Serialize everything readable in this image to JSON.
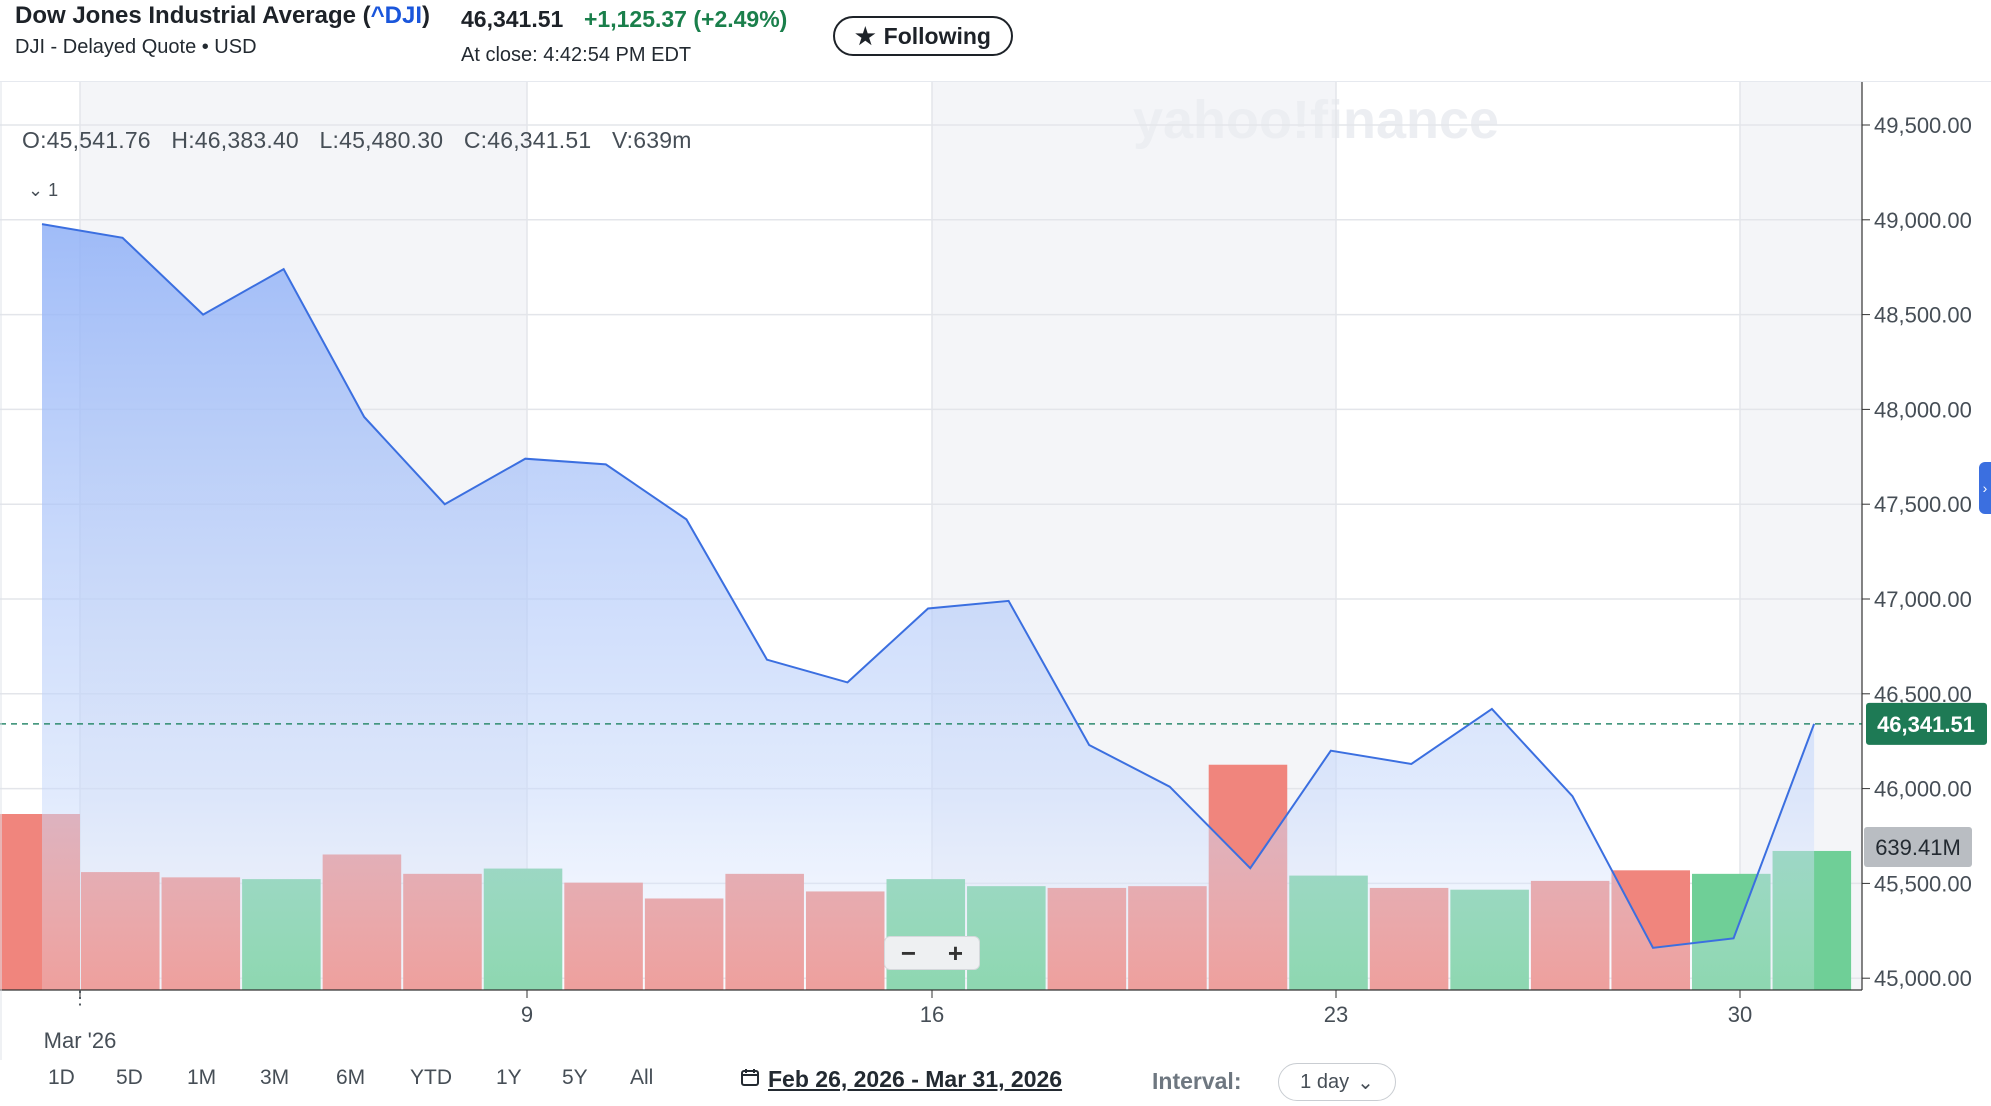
{
  "header": {
    "title_name": "Dow Jones Industrial Average (",
    "title_symbol": "^DJI",
    "title_close": ")",
    "subtitle": "DJI - Delayed Quote • USD",
    "price": "46,341.51",
    "change": "+1,125.37  (+2.49%)",
    "close_time": "At close: 4:42:54 PM EDT",
    "follow_label": "Following"
  },
  "ohlc": {
    "open": "O:45,541.76",
    "high": "H:46,383.40",
    "low": "L:45,480.30",
    "close": "C:46,341.51",
    "volume": "V:639m"
  },
  "collapse_label": "1",
  "watermark": "yahoo!finance",
  "chart_data": {
    "type": "area",
    "x_tick_labels": [
      "Mar '26",
      "9",
      "16",
      "23",
      "30"
    ],
    "y_tick_labels": [
      "49,500.00",
      "49,000.00",
      "48,500.00",
      "48,000.00",
      "47,500.00",
      "47,000.00",
      "46,500.00",
      "46,000.00",
      "45,500.00",
      "45,000.00"
    ],
    "ylim": [
      45000,
      49500
    ],
    "dates": [
      "2026-02-27",
      "2026-03-02",
      "2026-03-03",
      "2026-03-04",
      "2026-03-05",
      "2026-03-06",
      "2026-03-09",
      "2026-03-10",
      "2026-03-11",
      "2026-03-12",
      "2026-03-13",
      "2026-03-16",
      "2026-03-17",
      "2026-03-18",
      "2026-03-19",
      "2026-03-20",
      "2026-03-23",
      "2026-03-24",
      "2026-03-25",
      "2026-03-26",
      "2026-03-27",
      "2026-03-30",
      "2026-03-31"
    ],
    "series": [
      {
        "values": [
          48977,
          48905,
          48500,
          48740,
          47960,
          47500,
          47740,
          47710,
          47420,
          46680,
          46560,
          46950,
          46990,
          46230,
          46010,
          45580,
          46200,
          46130,
          46420,
          45960,
          45160,
          45210,
          46341.51
        ],
        "color": "#3b6fe0"
      }
    ],
    "volume_directions": [
      "down",
      "down",
      "down",
      "up",
      "down",
      "down",
      "up",
      "down",
      "down",
      "down",
      "down",
      "up",
      "up",
      "down",
      "down",
      "down",
      "up",
      "down",
      "up",
      "down",
      "down",
      "up",
      "up"
    ],
    "volume_relative": [
      1.0,
      0.67,
      0.64,
      0.63,
      0.77,
      0.66,
      0.69,
      0.61,
      0.52,
      0.66,
      0.56,
      0.63,
      0.59,
      0.58,
      0.59,
      1.28,
      0.65,
      0.58,
      0.57,
      0.62,
      0.68,
      0.66,
      0.79
    ],
    "last_price_label": "46,341.51",
    "last_volume_label": "639.41M",
    "up_color": "#6fcf97",
    "down_color": "#f0857d",
    "grid": true
  },
  "ranges": [
    "1D",
    "5D",
    "1M",
    "3M",
    "6M",
    "YTD",
    "1Y",
    "5Y",
    "All"
  ],
  "date_range": "Feb 26, 2026 - Mar 31, 2026",
  "interval_label": "Interval:",
  "interval_value": "1 day"
}
